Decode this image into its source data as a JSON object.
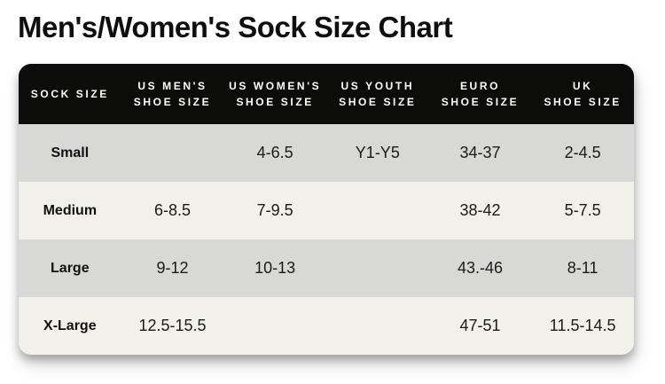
{
  "page": {
    "title": "Men's/Women's Sock Size Chart"
  },
  "colors": {
    "header_bg": "#0c0c0a",
    "header_text": "#ffffff",
    "row_gray": "#d8d8d7",
    "row_cream": "#f1f0e9",
    "title_text": "#0f0f0f",
    "cell_text": "#1a1a1a",
    "page_bg": "#ffffff"
  },
  "chart_data": {
    "type": "table",
    "title": "Men's/Women's Sock Size Chart",
    "columns": [
      {
        "line1": "SOCK SIZE",
        "line2": ""
      },
      {
        "line1": "US MEN'S",
        "line2": "SHOE SIZE"
      },
      {
        "line1": "US WOMEN'S",
        "line2": "SHOE SIZE"
      },
      {
        "line1": "US YOUTH",
        "line2": "SHOE SIZE"
      },
      {
        "line1": "EURO",
        "line2": "SHOE SIZE"
      },
      {
        "line1": "UK",
        "line2": "SHOE SIZE"
      }
    ],
    "rows": [
      {
        "cells": [
          "Small",
          "",
          "4-6.5",
          "Y1-Y5",
          "34-37",
          "2-4.5"
        ]
      },
      {
        "cells": [
          "Medium",
          "6-8.5",
          "7-9.5",
          "",
          "38-42",
          "5-7.5"
        ]
      },
      {
        "cells": [
          "Large",
          "9-12",
          "10-13",
          "",
          "43.-46",
          "8-11"
        ]
      },
      {
        "cells": [
          "X-Large",
          "12.5-15.5",
          "",
          "",
          "47-51",
          "11.5-14.5"
        ]
      }
    ],
    "layout": {
      "grid": "off",
      "header_position": "top",
      "row_striping": [
        "gray",
        "cream",
        "gray",
        "cream"
      ]
    }
  }
}
